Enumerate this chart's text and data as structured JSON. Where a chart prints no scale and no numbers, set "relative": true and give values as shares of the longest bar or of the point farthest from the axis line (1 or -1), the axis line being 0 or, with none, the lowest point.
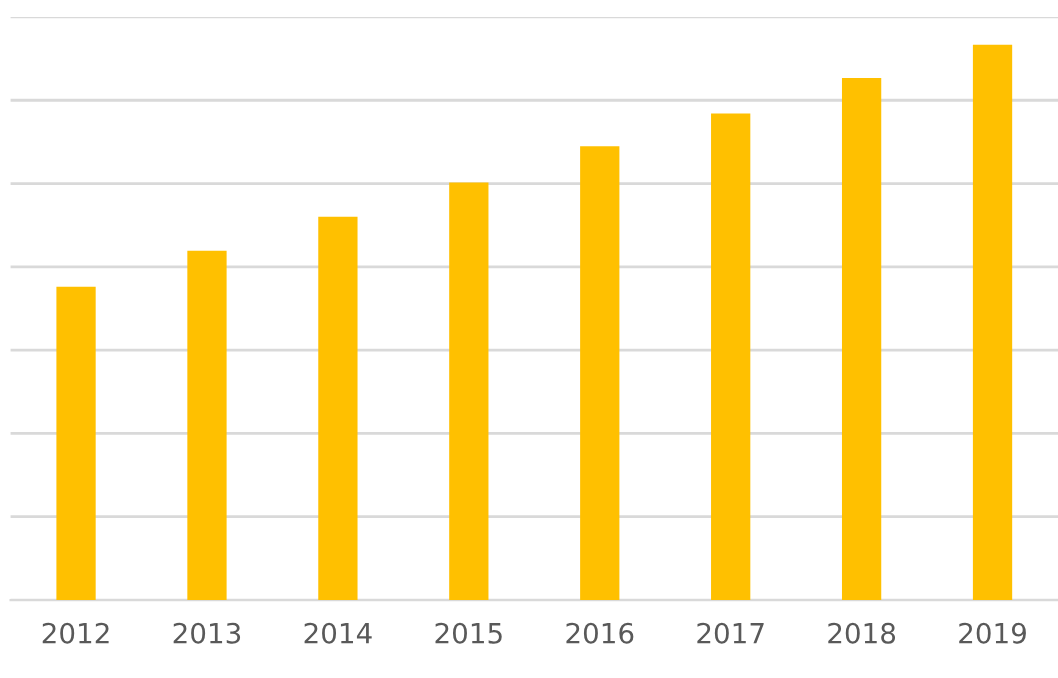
{
  "chart_data": {
    "type": "bar",
    "relative": true,
    "categories": [
      "2012",
      "2013",
      "2014",
      "2015",
      "2016",
      "2017",
      "2018",
      "2019"
    ],
    "values": [
      0.564,
      0.629,
      0.69,
      0.752,
      0.817,
      0.876,
      0.94,
      1
    ],
    "color": "#ffc000",
    "grid": "y",
    "tick_labels": "x"
  }
}
